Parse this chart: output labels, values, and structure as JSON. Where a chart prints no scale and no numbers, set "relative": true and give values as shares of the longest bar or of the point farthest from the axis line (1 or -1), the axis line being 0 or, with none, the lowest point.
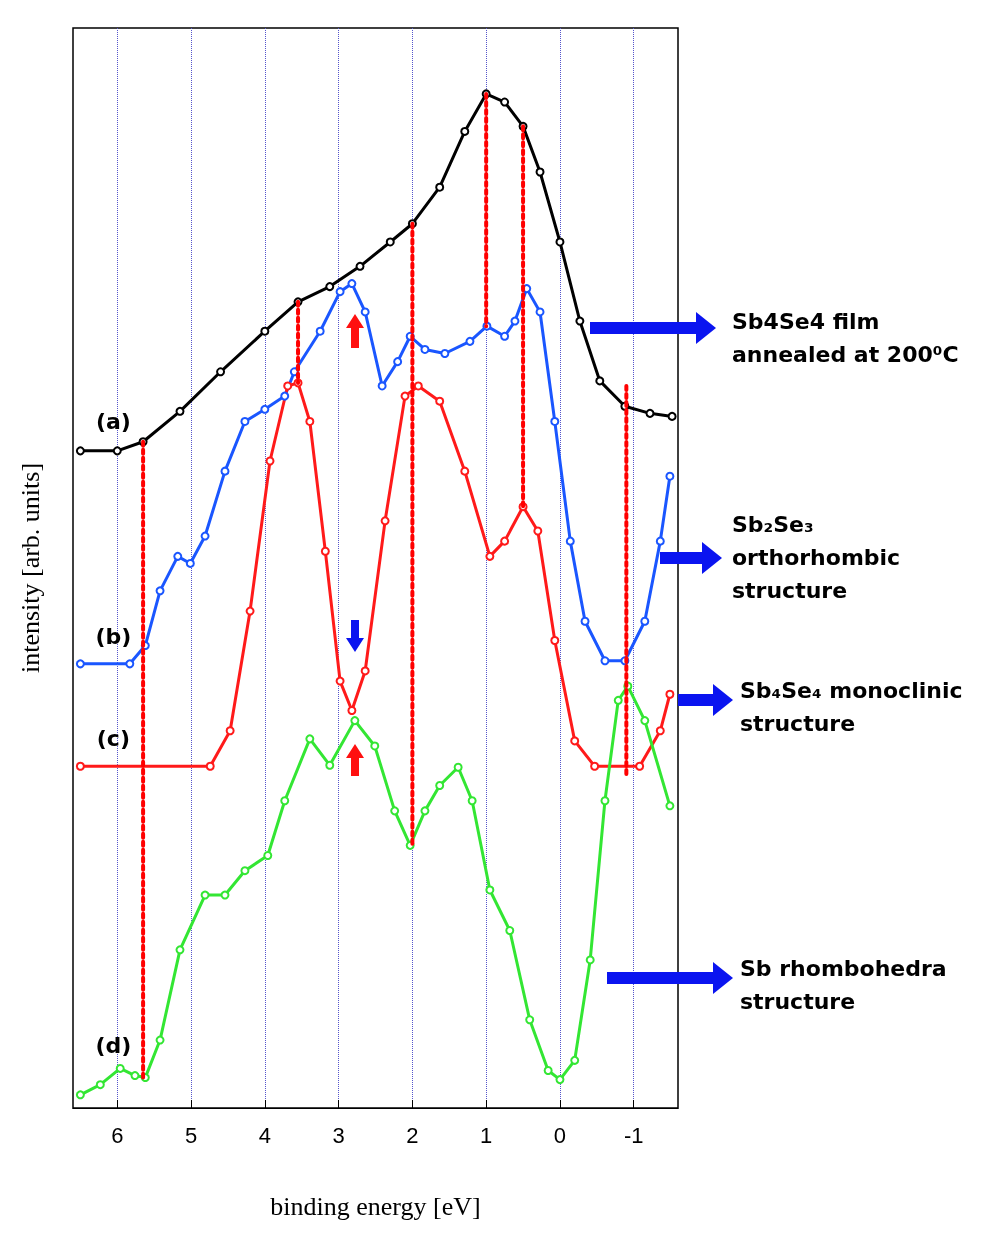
{
  "chart_data": {
    "type": "line",
    "relative": true,
    "xlabel": "binding energy [eV]",
    "ylabel": "intensity [arb. units]",
    "xlim": [
      6.6,
      -1.6
    ],
    "xticks": [
      6,
      5,
      4,
      3,
      2,
      1,
      0,
      -1
    ],
    "grid": "x",
    "marker": "circle",
    "line_style": "solid",
    "annotations": [
      "Sb4Se4 film annealed at 200⁰C",
      "Sb₂Se₃ orthorhombic structure",
      "Sb₄Se₄ monoclinic structure",
      "Sb rhombohedra structure"
    ],
    "series": [
      {
        "name": "(a)",
        "color": "#000000",
        "x": [
          6.5,
          6.0,
          5.65,
          5.15,
          4.6,
          4.0,
          3.55,
          3.12,
          2.71,
          2.3,
          2.0,
          1.63,
          1.29,
          1.0,
          0.75,
          0.5,
          0.27,
          0.0,
          -0.27,
          -0.54,
          -0.88,
          -1.22,
          -1.52
        ],
        "values": [
          0.648,
          0.648,
          0.657,
          0.687,
          0.726,
          0.766,
          0.795,
          0.81,
          0.83,
          0.854,
          0.872,
          0.908,
          0.963,
          1.0,
          0.992,
          0.968,
          0.923,
          0.854,
          0.776,
          0.717,
          0.692,
          0.685,
          0.682
        ]
      },
      {
        "name": "(b)",
        "color": "#1a56ff",
        "x": [
          6.5,
          5.83,
          5.62,
          5.42,
          5.18,
          5.01,
          4.81,
          4.54,
          4.27,
          4.0,
          3.73,
          3.6,
          3.25,
          2.98,
          2.82,
          2.64,
          2.41,
          2.2,
          2.03,
          1.83,
          1.56,
          1.22,
          0.99,
          0.75,
          0.61,
          0.45,
          0.27,
          0.07,
          -0.14,
          -0.34,
          -0.61,
          -0.88,
          -1.15,
          -1.36,
          -1.49
        ],
        "values": [
          0.438,
          0.438,
          0.456,
          0.51,
          0.544,
          0.537,
          0.564,
          0.628,
          0.677,
          0.689,
          0.702,
          0.726,
          0.766,
          0.805,
          0.813,
          0.785,
          0.712,
          0.736,
          0.761,
          0.748,
          0.744,
          0.756,
          0.771,
          0.761,
          0.776,
          0.808,
          0.785,
          0.677,
          0.559,
          0.48,
          0.441,
          0.441,
          0.48,
          0.559,
          0.623
        ]
      },
      {
        "name": "(c)",
        "color": "#ff1a1a",
        "x": [
          6.5,
          4.74,
          4.47,
          4.2,
          3.93,
          3.69,
          3.55,
          3.39,
          3.18,
          2.98,
          2.82,
          2.64,
          2.37,
          2.1,
          1.92,
          1.63,
          1.29,
          0.95,
          0.75,
          0.5,
          0.3,
          0.07,
          -0.2,
          -0.47,
          -1.08,
          -1.36,
          -1.49
        ],
        "values": [
          0.337,
          0.337,
          0.372,
          0.49,
          0.638,
          0.712,
          0.715,
          0.677,
          0.549,
          0.421,
          0.392,
          0.431,
          0.579,
          0.702,
          0.712,
          0.697,
          0.628,
          0.544,
          0.559,
          0.593,
          0.569,
          0.461,
          0.362,
          0.337,
          0.337,
          0.372,
          0.408
        ]
      },
      {
        "name": "(d)",
        "color": "#33e633",
        "x": [
          6.5,
          6.23,
          5.96,
          5.76,
          5.62,
          5.42,
          5.15,
          4.81,
          4.54,
          4.27,
          3.96,
          3.73,
          3.39,
          3.12,
          2.78,
          2.51,
          2.24,
          2.03,
          1.83,
          1.63,
          1.38,
          1.19,
          0.95,
          0.68,
          0.41,
          0.16,
          0.0,
          -0.2,
          -0.41,
          -0.61,
          -0.79,
          -0.92,
          -1.15,
          -1.49
        ],
        "values": [
          0.013,
          0.023,
          0.039,
          0.032,
          0.03,
          0.067,
          0.156,
          0.21,
          0.21,
          0.234,
          0.249,
          0.303,
          0.364,
          0.338,
          0.382,
          0.357,
          0.293,
          0.259,
          0.293,
          0.318,
          0.336,
          0.303,
          0.215,
          0.175,
          0.087,
          0.037,
          0.028,
          0.047,
          0.146,
          0.303,
          0.402,
          0.416,
          0.382,
          0.298
        ]
      },
      {
        "color": "#ff0000",
        "marker": "none",
        "line_style": "dotted",
        "x": [
          5.65,
          5.65
        ],
        "values": [
          0.657,
          0.03
        ]
      },
      {
        "color": "#ff0000",
        "marker": "none",
        "line_style": "dotted",
        "x": [
          3.55,
          3.55
        ],
        "values": [
          0.795,
          0.715
        ]
      },
      {
        "color": "#ff0000",
        "marker": "none",
        "line_style": "dotted",
        "x": [
          2.0,
          2.0
        ],
        "values": [
          0.872,
          0.259
        ]
      },
      {
        "color": "#ff0000",
        "marker": "none",
        "line_style": "dotted",
        "x": [
          1.0,
          1.0
        ],
        "values": [
          1.0,
          0.771
        ]
      },
      {
        "color": "#ff0000",
        "marker": "none",
        "line_style": "dotted",
        "x": [
          0.5,
          0.5
        ],
        "values": [
          0.968,
          0.593
        ]
      },
      {
        "color": "#ff0000",
        "marker": "none",
        "line_style": "dotted",
        "x": [
          -0.9,
          -0.9
        ],
        "values": [
          0.712,
          0.328
        ]
      }
    ]
  }
}
